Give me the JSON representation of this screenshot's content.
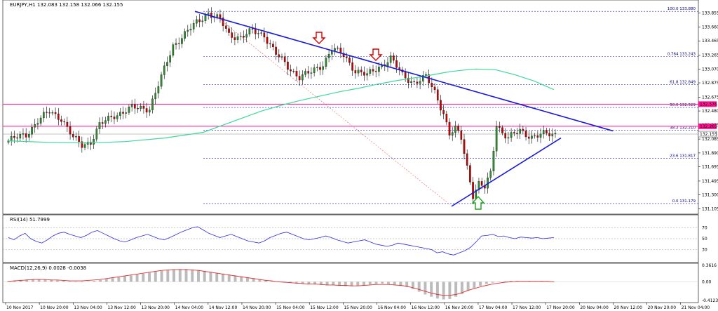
{
  "chart_data": {
    "type": "candlestick",
    "symbol_header": "EURJPY,H1  132.083 132.158 132.066 132.155",
    "price_axis": {
      "ticks": [
        "133.855",
        "133.660",
        "133.465",
        "133.265",
        "133.070",
        "132.875",
        "132.675",
        "132.480",
        "132.285",
        "132.085",
        "131.890",
        "131.695",
        "131.495",
        "131.300",
        "131.105"
      ],
      "ylim": [
        131.05,
        134.02
      ]
    },
    "time_axis": {
      "ticks": [
        "10 Nov 2017",
        "10 Nov 20:00",
        "13 Nov 04:00",
        "13 Nov 12:00",
        "13 Nov 20:00",
        "14 Nov 04:00",
        "14 Nov 12:00",
        "14 Nov 20:00",
        "15 Nov 04:00",
        "15 Nov 12:00",
        "15 Nov 20:00",
        "16 Nov 04:00",
        "16 Nov 12:00",
        "16 Nov 20:00",
        "17 Nov 04:00",
        "17 Nov 12:00",
        "17 Nov 20:00",
        "20 Nov 04:00",
        "20 Nov 12:00",
        "20 Nov 20:00",
        "21 Nov 04:00"
      ]
    },
    "fibonacci_levels": [
      {
        "label": "100.0  133.880",
        "value": 133.88
      },
      {
        "label": "0.764  133.243",
        "value": 133.243
      },
      {
        "label": "61.8  132.849",
        "value": 132.849
      },
      {
        "label": "50.0  132.529",
        "value": 132.529
      },
      {
        "label": "38.2  132.210",
        "value": 132.21
      },
      {
        "label": "23.6  131.817",
        "value": 131.817
      },
      {
        "label": "0.0  131.179",
        "value": 131.179
      }
    ],
    "horizontal_lines": [
      {
        "label": "132.576",
        "value": 132.576,
        "color": "#ff1493"
      },
      {
        "label": "132.265",
        "value": 132.265,
        "color": "#ff1493"
      }
    ],
    "current_price_label": "132.155",
    "current_price": 132.155,
    "colors": {
      "up": "#2e8b2e",
      "down": "#cc0000",
      "ma": "#3cd99a",
      "trend": "#1a1ad9",
      "fib": "#2020c0",
      "pink": "#ff1493",
      "rsi": "#2b2be0",
      "macd_signal": "#e03030",
      "macd_hist": "#bbbbbb"
    },
    "candles_ohlc": [],
    "moving_average": [
      [
        0,
        132.06
      ],
      [
        10,
        132.04
      ],
      [
        20,
        132.03
      ],
      [
        30,
        132.05
      ],
      [
        40,
        132.1
      ],
      [
        50,
        132.18
      ],
      [
        55,
        132.28
      ],
      [
        60,
        132.38
      ],
      [
        65,
        132.48
      ],
      [
        70,
        132.56
      ],
      [
        75,
        132.63
      ],
      [
        80,
        132.69
      ],
      [
        85,
        132.75
      ],
      [
        90,
        132.8
      ],
      [
        95,
        132.86
      ],
      [
        100,
        132.91
      ],
      [
        106,
        132.96
      ],
      [
        110,
        133.0
      ],
      [
        113,
        133.03
      ],
      [
        116,
        133.05
      ],
      [
        120,
        133.07
      ],
      [
        125,
        133.06
      ],
      [
        130,
        132.99
      ],
      [
        135,
        132.9
      ],
      [
        140,
        132.78
      ]
    ],
    "rsi": {
      "label": "RSI(14) 51.7999",
      "ticks": [
        "70",
        "50",
        "30"
      ],
      "levels": [
        70,
        50,
        30
      ],
      "ylim": [
        10,
        90
      ],
      "values": [
        52,
        48,
        55,
        60,
        50,
        45,
        42,
        48,
        55,
        60,
        62,
        58,
        55,
        52,
        56,
        62,
        65,
        60,
        55,
        50,
        46,
        44,
        48,
        52,
        55,
        58,
        54,
        50,
        48,
        52,
        57,
        62,
        66,
        70,
        72,
        66,
        60,
        56,
        52,
        55,
        58,
        54,
        50,
        46,
        44,
        42,
        46,
        52,
        56,
        60,
        62,
        58,
        54,
        50,
        48,
        50,
        52,
        55,
        52,
        48,
        45,
        42,
        44,
        46,
        48,
        44,
        40,
        38,
        36,
        38,
        42,
        40,
        38,
        36,
        34,
        32,
        30,
        24,
        26,
        22,
        20,
        24,
        28,
        34,
        44,
        55,
        56,
        58,
        54,
        55,
        52,
        50,
        53,
        52,
        51,
        52,
        50,
        51,
        52
      ]
    },
    "macd": {
      "label": "MACD(12,26,9) 0.0028 -0.0038",
      "ticks": [
        "0.3616",
        "0.00",
        "-0.4123"
      ],
      "ylim": [
        -0.4123,
        0.3616
      ],
      "hist": [
        0.02,
        0.03,
        0.04,
        0.05,
        0.06,
        0.06,
        0.05,
        0.04,
        0.03,
        0.02,
        0.01,
        0.0,
        -0.01,
        0.01,
        0.02,
        0.04,
        0.06,
        0.08,
        0.1,
        0.12,
        0.14,
        0.16,
        0.18,
        0.2,
        0.22,
        0.24,
        0.26,
        0.27,
        0.28,
        0.28,
        0.27,
        0.26,
        0.24,
        0.22,
        0.2,
        0.18,
        0.16,
        0.14,
        0.12,
        0.1,
        0.08,
        0.06,
        0.04,
        0.02,
        0.01,
        0.0,
        -0.02,
        -0.04,
        -0.05,
        -0.06,
        -0.06,
        -0.07,
        -0.08,
        -0.08,
        -0.09,
        -0.1,
        -0.1,
        -0.09,
        -0.08,
        -0.06,
        -0.05,
        -0.04,
        -0.05,
        -0.07,
        -0.09,
        -0.12,
        -0.16,
        -0.22,
        -0.28,
        -0.33,
        -0.37,
        -0.39,
        -0.38,
        -0.33,
        -0.27,
        -0.2,
        -0.14,
        -0.09,
        -0.05,
        -0.02,
        0.0,
        0.01,
        0.02,
        0.02,
        0.01,
        0.02,
        0.01,
        0.02,
        0.01,
        0.0
      ],
      "signal": [
        0.01,
        0.02,
        0.03,
        0.04,
        0.05,
        0.05,
        0.05,
        0.04,
        0.04,
        0.03,
        0.02,
        0.02,
        0.02,
        0.03,
        0.04,
        0.05,
        0.07,
        0.09,
        0.11,
        0.13,
        0.15,
        0.17,
        0.19,
        0.21,
        0.23,
        0.25,
        0.26,
        0.27,
        0.27,
        0.27,
        0.26,
        0.25,
        0.23,
        0.21,
        0.19,
        0.17,
        0.15,
        0.13,
        0.11,
        0.09,
        0.07,
        0.05,
        0.03,
        0.02,
        0.0,
        -0.01,
        -0.02,
        -0.03,
        -0.04,
        -0.05,
        -0.05,
        -0.06,
        -0.07,
        -0.07,
        -0.08,
        -0.08,
        -0.09,
        -0.09,
        -0.08,
        -0.07,
        -0.06,
        -0.06,
        -0.06,
        -0.07,
        -0.08,
        -0.1,
        -0.13,
        -0.17,
        -0.21,
        -0.25,
        -0.28,
        -0.3,
        -0.3,
        -0.28,
        -0.24,
        -0.19,
        -0.15,
        -0.11,
        -0.08,
        -0.05,
        -0.03,
        -0.01,
        0.0,
        0.01,
        0.01,
        0.01,
        0.01,
        0.01,
        0.01,
        0.0
      ]
    }
  }
}
